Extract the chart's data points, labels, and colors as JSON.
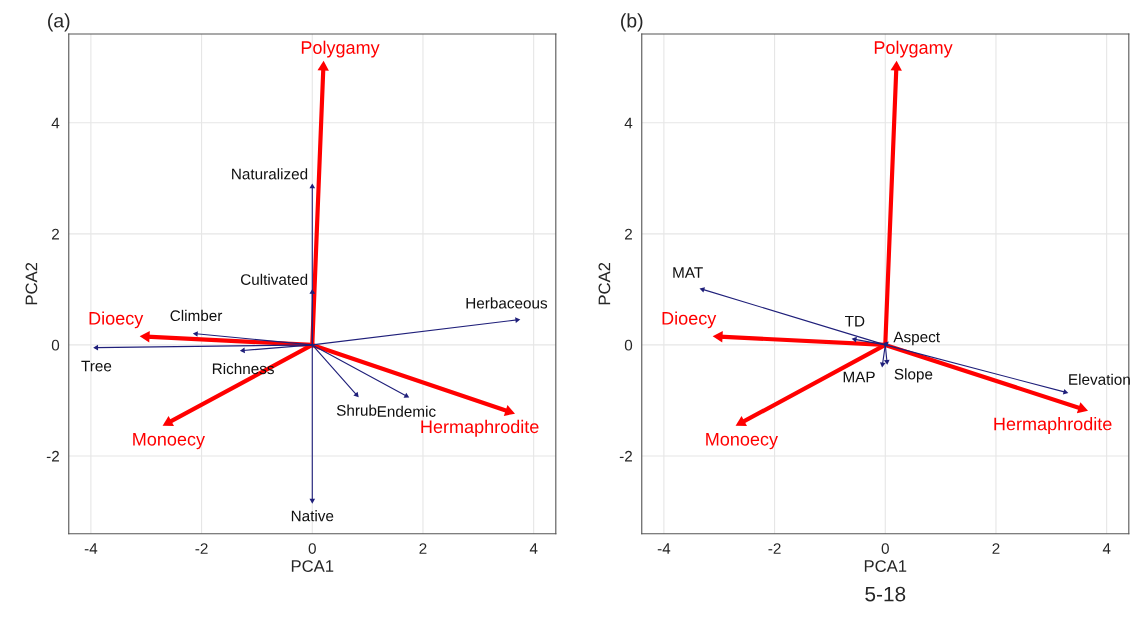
{
  "chart_data": [
    {
      "type": "scatter",
      "title": "(a)",
      "xlabel": "PCA1",
      "ylabel": "PCA2",
      "xlim": [
        -4.4,
        4.4
      ],
      "ylim": [
        -3.4,
        5.6
      ],
      "xticks": [
        -4,
        -2,
        0,
        2,
        4
      ],
      "yticks": [
        -2,
        0,
        2,
        4
      ],
      "grid": true,
      "marker": "triangle",
      "series": [
        {
          "color": "#ff0000",
          "x": [
            0.2,
            3.55,
            -2.6,
            -3.0
          ],
          "values": [
            5.0,
            -1.2,
            -1.4,
            0.15
          ]
        },
        {
          "color": "#1f1f7a",
          "x": [
            0,
            0,
            3.7,
            -2.1,
            -3.9,
            -1.25,
            0.8,
            1.7,
            0
          ],
          "values": [
            2.85,
            0.95,
            0.45,
            0.2,
            -0.05,
            -0.1,
            -0.9,
            -0.92,
            -2.8
          ]
        }
      ],
      "annotations": [
        {
          "text": "Polygamy",
          "x": 0.2,
          "y": 5.0
        },
        {
          "text": "Hermaphrodite",
          "x": 3.55,
          "y": -1.2
        },
        {
          "text": "Monoecy",
          "x": -2.6,
          "y": -1.4
        },
        {
          "text": "Dioecy",
          "x": -3.0,
          "y": 0.15
        },
        {
          "text": "Naturalized",
          "x": 0,
          "y": 2.85
        },
        {
          "text": "Cultivated",
          "x": 0,
          "y": 0.95
        },
        {
          "text": "Herbaceous",
          "x": 3.7,
          "y": 0.45
        },
        {
          "text": "Climber",
          "x": -2.1,
          "y": 0.2
        },
        {
          "text": "Tree",
          "x": -3.9,
          "y": -0.05
        },
        {
          "text": "Richness",
          "x": -1.25,
          "y": -0.1
        },
        {
          "text": "Shrub",
          "x": 0.8,
          "y": -0.9
        },
        {
          "text": "Endemic",
          "x": 1.7,
          "y": -0.92
        },
        {
          "text": "Native",
          "x": 0,
          "y": -2.8
        }
      ]
    },
    {
      "type": "scatter",
      "title": "(b)",
      "xlabel": "PCA1",
      "ylabel": "PCA2",
      "xlim": [
        -4.4,
        4.4
      ],
      "ylim": [
        -3.4,
        5.6
      ],
      "xticks": [
        -4,
        -2,
        0,
        2,
        4
      ],
      "yticks": [
        -2,
        0,
        2,
        4
      ],
      "grid": true,
      "marker": "triangle",
      "series": [
        {
          "color": "#ff0000",
          "x": [
            0.2,
            3.55,
            -2.6,
            -3.0
          ],
          "values": [
            5.0,
            -1.15,
            -1.4,
            0.15
          ]
        },
        {
          "color": "#1f1f7a",
          "x": [
            -3.3,
            -0.55,
            0.02,
            -0.05,
            0.03,
            3.25
          ],
          "values": [
            1.0,
            0.1,
            0.02,
            -0.35,
            -0.3,
            -0.85
          ]
        }
      ],
      "annotations": [
        {
          "text": "Polygamy",
          "x": 0.2,
          "y": 5.0
        },
        {
          "text": "Hermaphrodite",
          "x": 3.55,
          "y": -1.15
        },
        {
          "text": "Monoecy",
          "x": -2.6,
          "y": -1.4
        },
        {
          "text": "Dioecy",
          "x": -3.0,
          "y": 0.15
        },
        {
          "text": "MAT",
          "x": -3.3,
          "y": 1.0
        },
        {
          "text": "TD",
          "x": -0.55,
          "y": 0.1
        },
        {
          "text": "Aspect",
          "x": 0.02,
          "y": 0.02
        },
        {
          "text": "MAP",
          "x": -0.05,
          "y": -0.35
        },
        {
          "text": "Slope",
          "x": 0.03,
          "y": -0.3
        },
        {
          "text": "Elevation",
          "x": 3.25,
          "y": -0.85
        },
        "5-18"
      ]
    }
  ]
}
